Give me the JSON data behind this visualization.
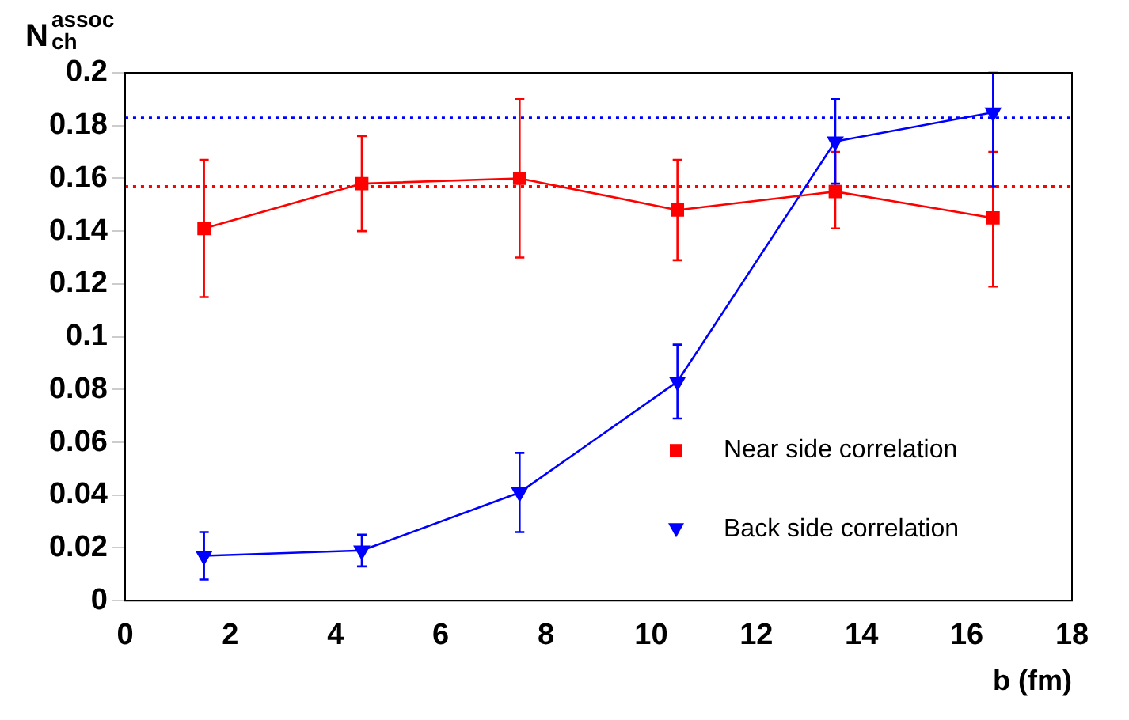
{
  "chart_data": {
    "type": "line",
    "xlabel": "b (fm)",
    "ylabel": "N$_{ch}$$^{assoc}$",
    "xlim": [
      0,
      18
    ],
    "xticks": [
      0,
      2,
      4,
      6,
      8,
      10,
      12,
      14,
      16,
      18
    ],
    "ylim": [
      0,
      0.2
    ],
    "yticks": [
      0,
      0.02,
      0.04,
      0.06,
      0.08,
      0.1,
      0.12,
      0.14,
      0.16,
      0.18,
      0.2
    ],
    "grid": false,
    "legend": "bottom right",
    "line_style": "solid",
    "series": [
      {
        "name": "Near side correlation",
        "color": "#ff0000",
        "marker": "square",
        "x": [
          1.5,
          4.5,
          7.5,
          10.5,
          13.5,
          16.5
        ],
        "values": [
          0.141,
          0.158,
          0.16,
          0.148,
          0.155,
          0.145
        ],
        "errors": [
          [
            0.115,
            0.167
          ],
          [
            0.14,
            0.176
          ],
          [
            0.13,
            0.19
          ],
          [
            0.129,
            0.167
          ],
          [
            0.141,
            0.17
          ],
          [
            0.119,
            0.17
          ]
        ]
      },
      {
        "name": "Back side correlation",
        "color": "#0000ff",
        "marker": "triangle",
        "x": [
          1.5,
          4.5,
          7.5,
          10.5,
          13.5,
          16.5
        ],
        "values": [
          0.017,
          0.019,
          0.041,
          0.083,
          0.174,
          0.185
        ],
        "errors": [
          [
            0.008,
            0.026
          ],
          [
            0.013,
            0.025
          ],
          [
            0.026,
            0.056
          ],
          [
            0.069,
            0.097
          ],
          [
            0.158,
            0.19
          ],
          [
            0.157,
            0.2
          ]
        ]
      }
    ],
    "ref_lines": [
      {
        "axis": "y",
        "value": 0.183,
        "color": "#0000ff",
        "line_style": "dotted"
      },
      {
        "axis": "y",
        "value": 0.157,
        "color": "#ff0000",
        "line_style": "dotted"
      }
    ]
  }
}
